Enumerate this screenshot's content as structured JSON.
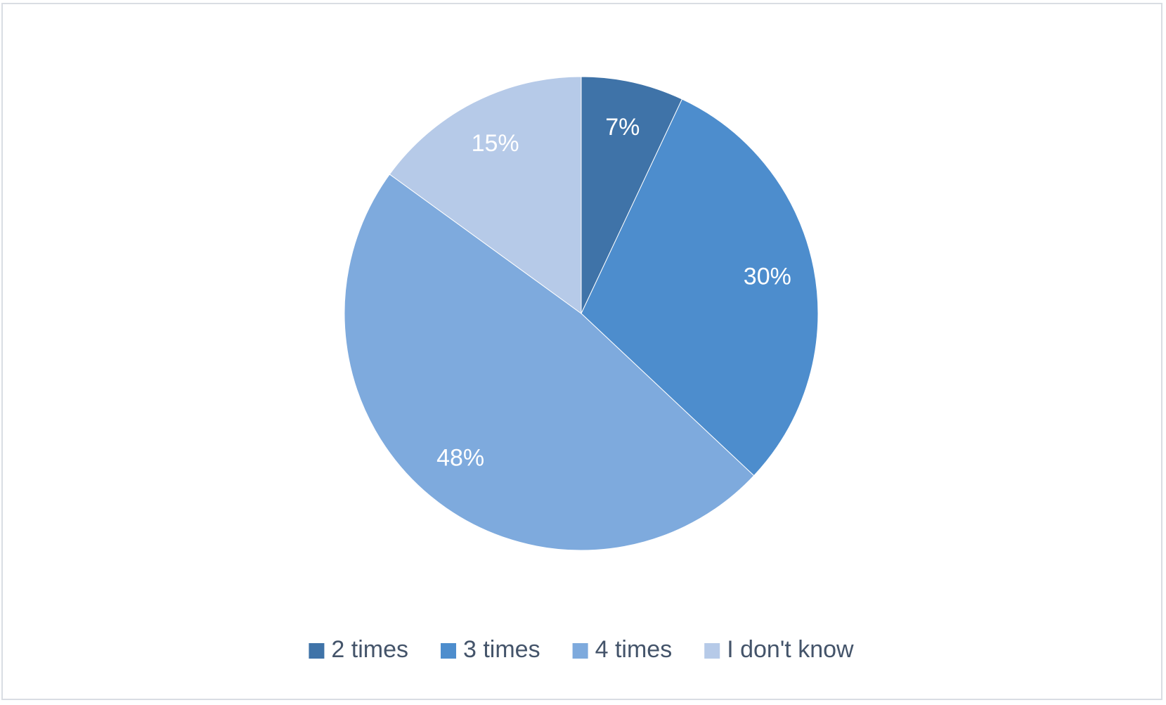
{
  "chart_data": {
    "type": "pie",
    "categories": [
      "2 times",
      "3 times",
      "4 times",
      "I don't know"
    ],
    "values": [
      7,
      30,
      48,
      15
    ],
    "value_labels": [
      "7%",
      "30%",
      "48%",
      "15%"
    ],
    "colors": [
      "#3f73a8",
      "#4d8dcd",
      "#7eaadd",
      "#b6cae8"
    ],
    "legend": "bottom"
  }
}
